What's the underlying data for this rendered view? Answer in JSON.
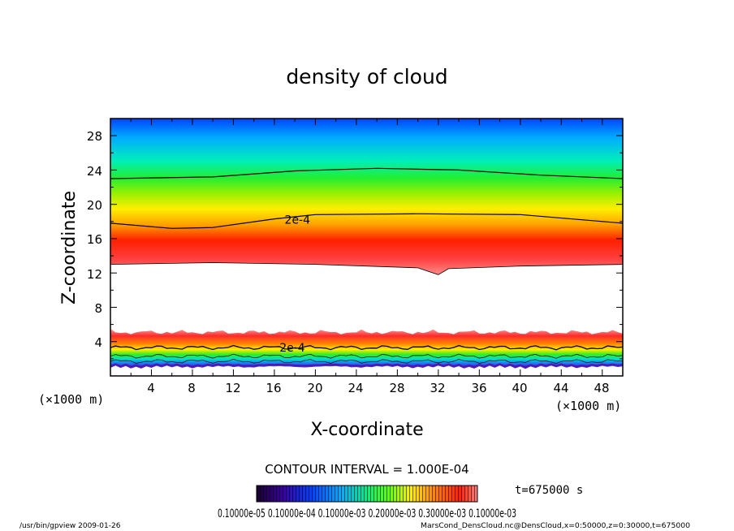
{
  "chart_data": {
    "type": "heatmap",
    "title": "density of cloud",
    "xlabel": "X-coordinate",
    "ylabel": "Z-coordinate",
    "x_unit": "(×1000 m)",
    "y_unit": "(×1000 m)",
    "xlim": [
      0,
      50
    ],
    "ylim": [
      0,
      30
    ],
    "x_ticks": [
      "4",
      "8",
      "12",
      "16",
      "20",
      "24",
      "28",
      "32",
      "36",
      "40",
      "44",
      "48"
    ],
    "y_ticks": [
      "4",
      "8",
      "12",
      "16",
      "20",
      "24",
      "28"
    ],
    "contour_interval_text": "CONTOUR INTERVAL = 1.000E-04",
    "contour_labels": [
      {
        "text": "2e-4",
        "x": 17,
        "z": 18.2
      },
      {
        "text": "2e-4",
        "x": 16.5,
        "z": 3.3
      }
    ],
    "upper_cloud": {
      "bottom_z_at_x": [
        [
          0,
          13.0
        ],
        [
          10,
          13.2
        ],
        [
          20,
          13.0
        ],
        [
          30,
          12.6
        ],
        [
          32,
          11.8
        ],
        [
          33,
          12.5
        ],
        [
          40,
          12.8
        ],
        [
          50,
          13.0
        ]
      ],
      "contour_lines": [
        {
          "level": "2e-4",
          "points": [
            [
              0,
              17.8
            ],
            [
              6,
              17.2
            ],
            [
              10,
              17.3
            ],
            [
              16,
              18.3
            ],
            [
              20,
              18.8
            ],
            [
              30,
              18.9
            ],
            [
              40,
              18.8
            ],
            [
              50,
              17.8
            ]
          ]
        },
        {
          "level": "1e-4",
          "points": [
            [
              0,
              23.0
            ],
            [
              10,
              23.2
            ],
            [
              18,
              23.9
            ],
            [
              26,
              24.2
            ],
            [
              34,
              24.0
            ],
            [
              42,
              23.4
            ],
            [
              50,
              23.0
            ]
          ]
        }
      ]
    },
    "lower_cloud": {
      "top_z": 5.5,
      "peak_z": 4.2,
      "bottom_z": 0.8
    },
    "colorbar": {
      "labels_text": "0.10000e-05 0.10000e-04 0.10000e-03 0.20000e-03 0.30000e-03 0.10000e-03",
      "colors": [
        "#1a0030",
        "#3a00a0",
        "#0044ff",
        "#00aaff",
        "#00ee88",
        "#66ff00",
        "#ffee00",
        "#ff8800",
        "#ff2200",
        "#ff8080"
      ]
    },
    "time_label": "t=675000 s"
  },
  "footer": {
    "left": "/usr/bin/gpview   2009-01-26",
    "right": "MarsCond_DensCloud.nc@DensCloud,x=0:50000,z=0:30000,t=675000"
  }
}
